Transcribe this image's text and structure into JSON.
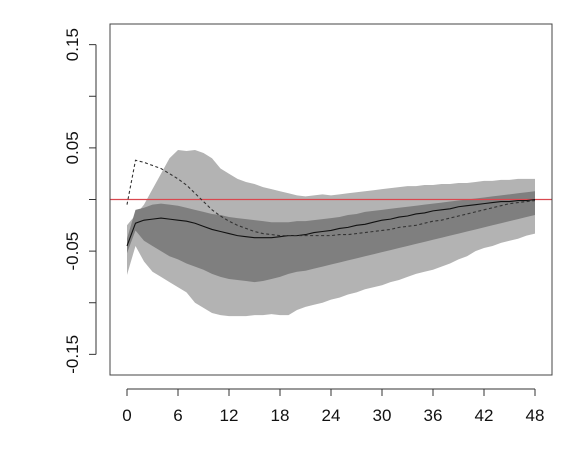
{
  "chart_data": {
    "type": "line",
    "title": "",
    "xlabel": "",
    "ylabel": "",
    "xlim": [
      -2,
      50
    ],
    "ylim": [
      -0.17,
      0.17
    ],
    "x_ticks": [
      0,
      6,
      12,
      18,
      24,
      30,
      36,
      42,
      48
    ],
    "x_tick_labels": [
      "0",
      "6",
      "12",
      "18",
      "24",
      "30",
      "36",
      "42",
      "48"
    ],
    "y_ticks": [
      0.15,
      0.05,
      -0.05,
      -0.15
    ],
    "y_tick_labels": [
      "0.15",
      "0.05",
      "-0.05",
      "-0.15"
    ],
    "y_tick_minor": [
      0.1,
      0.0,
      -0.1
    ],
    "grid": false,
    "reference_line": {
      "y": 0,
      "color": "#d9484f"
    },
    "colors": {
      "outer_band": "#b3b3b3",
      "inner_band": "#7f7f7f",
      "median": "#111111",
      "dashed": "#333333"
    },
    "x": [
      0,
      1,
      2,
      3,
      4,
      5,
      6,
      7,
      8,
      9,
      10,
      11,
      12,
      13,
      14,
      15,
      16,
      17,
      18,
      19,
      20,
      21,
      22,
      23,
      24,
      25,
      26,
      27,
      28,
      29,
      30,
      31,
      32,
      33,
      34,
      35,
      36,
      37,
      38,
      39,
      40,
      41,
      42,
      43,
      44,
      45,
      46,
      47,
      48
    ],
    "bands": [
      {
        "level": "outer",
        "upper": [
          -0.025,
          -0.015,
          -0.005,
          0.01,
          0.025,
          0.04,
          0.048,
          0.047,
          0.048,
          0.045,
          0.04,
          0.03,
          0.025,
          0.02,
          0.017,
          0.015,
          0.012,
          0.01,
          0.008,
          0.006,
          0.004,
          0.003,
          0.004,
          0.005,
          0.004,
          0.005,
          0.006,
          0.007,
          0.008,
          0.009,
          0.01,
          0.011,
          0.012,
          0.013,
          0.013,
          0.014,
          0.014,
          0.015,
          0.015,
          0.016,
          0.016,
          0.017,
          0.018,
          0.018,
          0.019,
          0.019,
          0.02,
          0.02,
          0.02
        ],
        "lower": [
          -0.073,
          -0.045,
          -0.06,
          -0.07,
          -0.075,
          -0.08,
          -0.085,
          -0.09,
          -0.1,
          -0.105,
          -0.11,
          -0.112,
          -0.113,
          -0.113,
          -0.113,
          -0.112,
          -0.112,
          -0.111,
          -0.112,
          -0.112,
          -0.107,
          -0.104,
          -0.102,
          -0.1,
          -0.097,
          -0.095,
          -0.092,
          -0.09,
          -0.087,
          -0.085,
          -0.083,
          -0.08,
          -0.078,
          -0.075,
          -0.072,
          -0.07,
          -0.068,
          -0.065,
          -0.062,
          -0.058,
          -0.055,
          -0.05,
          -0.047,
          -0.045,
          -0.042,
          -0.04,
          -0.038,
          -0.035,
          -0.033
        ]
      },
      {
        "level": "inner",
        "upper": [
          -0.038,
          -0.01,
          -0.008,
          -0.005,
          -0.004,
          -0.005,
          -0.006,
          -0.008,
          -0.01,
          -0.012,
          -0.014,
          -0.015,
          -0.017,
          -0.018,
          -0.019,
          -0.02,
          -0.021,
          -0.022,
          -0.022,
          -0.022,
          -0.021,
          -0.021,
          -0.02,
          -0.019,
          -0.018,
          -0.017,
          -0.015,
          -0.014,
          -0.012,
          -0.011,
          -0.01,
          -0.009,
          -0.008,
          -0.007,
          -0.006,
          -0.005,
          -0.004,
          -0.003,
          -0.002,
          -0.001,
          0.0,
          0.001,
          0.002,
          0.003,
          0.004,
          0.005,
          0.006,
          0.007,
          0.008
        ],
        "lower": [
          -0.052,
          -0.03,
          -0.04,
          -0.045,
          -0.05,
          -0.055,
          -0.058,
          -0.062,
          -0.065,
          -0.068,
          -0.072,
          -0.075,
          -0.077,
          -0.078,
          -0.079,
          -0.08,
          -0.079,
          -0.077,
          -0.075,
          -0.072,
          -0.07,
          -0.069,
          -0.067,
          -0.065,
          -0.063,
          -0.061,
          -0.059,
          -0.057,
          -0.055,
          -0.053,
          -0.051,
          -0.049,
          -0.047,
          -0.045,
          -0.043,
          -0.041,
          -0.039,
          -0.037,
          -0.035,
          -0.033,
          -0.031,
          -0.029,
          -0.027,
          -0.025,
          -0.023,
          -0.021,
          -0.019,
          -0.017,
          -0.015
        ]
      }
    ],
    "series": [
      {
        "style": "solid",
        "values": [
          -0.045,
          -0.023,
          -0.02,
          -0.019,
          -0.018,
          -0.019,
          -0.02,
          -0.021,
          -0.023,
          -0.026,
          -0.029,
          -0.031,
          -0.033,
          -0.035,
          -0.036,
          -0.037,
          -0.037,
          -0.037,
          -0.036,
          -0.035,
          -0.035,
          -0.034,
          -0.032,
          -0.031,
          -0.03,
          -0.028,
          -0.027,
          -0.025,
          -0.024,
          -0.022,
          -0.02,
          -0.019,
          -0.017,
          -0.016,
          -0.014,
          -0.013,
          -0.011,
          -0.01,
          -0.009,
          -0.007,
          -0.006,
          -0.005,
          -0.004,
          -0.003,
          -0.002,
          -0.002,
          -0.001,
          -0.001,
          0.0
        ]
      },
      {
        "style": "dashed",
        "values": [
          -0.005,
          0.038,
          0.036,
          0.033,
          0.03,
          0.025,
          0.02,
          0.014,
          0.006,
          -0.002,
          -0.01,
          -0.016,
          -0.021,
          -0.025,
          -0.028,
          -0.031,
          -0.033,
          -0.034,
          -0.035,
          -0.035,
          -0.035,
          -0.035,
          -0.035,
          -0.035,
          -0.035,
          -0.034,
          -0.034,
          -0.033,
          -0.032,
          -0.031,
          -0.03,
          -0.029,
          -0.027,
          -0.026,
          -0.025,
          -0.023,
          -0.021,
          -0.02,
          -0.018,
          -0.016,
          -0.014,
          -0.012,
          -0.01,
          -0.008,
          -0.006,
          -0.004,
          -0.003,
          -0.002,
          -0.001
        ]
      }
    ]
  }
}
